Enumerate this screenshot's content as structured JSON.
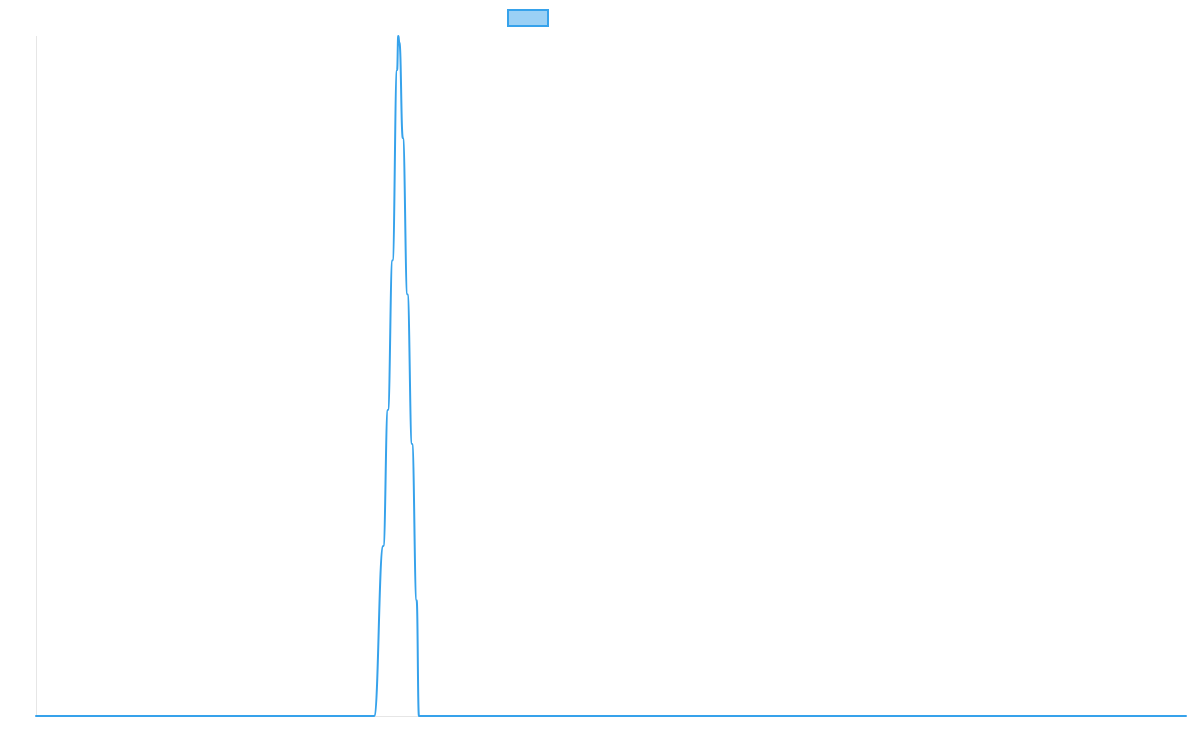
{
  "chart_data": {
    "type": "line",
    "title": "",
    "xlabel": "",
    "ylabel": "",
    "legend_position": "top",
    "grid": false,
    "xlim": [
      0,
      1
    ],
    "ylim": [
      0,
      1
    ],
    "series": [
      {
        "name": "",
        "color": "#36a2eb",
        "fill_color": "#9ad0f5",
        "points": [
          [
            0.0,
            0.0
          ],
          [
            0.294,
            0.0
          ],
          [
            0.302,
            0.25
          ],
          [
            0.306,
            0.45
          ],
          [
            0.31,
            0.67
          ],
          [
            0.314,
            0.95
          ],
          [
            0.315,
            1.0
          ],
          [
            0.316,
            0.99
          ],
          [
            0.319,
            0.85
          ],
          [
            0.323,
            0.62
          ],
          [
            0.327,
            0.4
          ],
          [
            0.331,
            0.17
          ],
          [
            0.333,
            0.0
          ],
          [
            1.0,
            0.0
          ]
        ]
      }
    ]
  }
}
